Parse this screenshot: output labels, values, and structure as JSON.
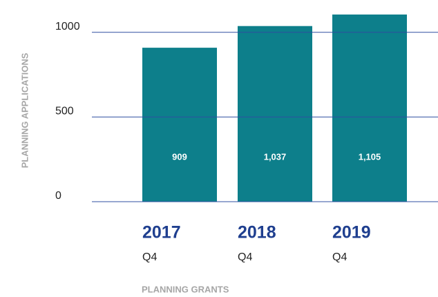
{
  "chart_data": {
    "type": "bar",
    "y_label": "PLANNING APPLICATIONS",
    "x_label": "PLANNING GRANTS",
    "categories": [
      "2017",
      "2018",
      "2019"
    ],
    "sublabels": [
      "Q4",
      "Q4",
      "Q4"
    ],
    "values": [
      909,
      1037,
      1105
    ],
    "value_labels": [
      "909",
      "1,037",
      "1,105"
    ],
    "color": "#0d7f8b",
    "grid_color": "#2f4fa0",
    "ylim": [
      0,
      1150
    ],
    "yticks": [
      0,
      500,
      1000
    ],
    "grid": true
  }
}
